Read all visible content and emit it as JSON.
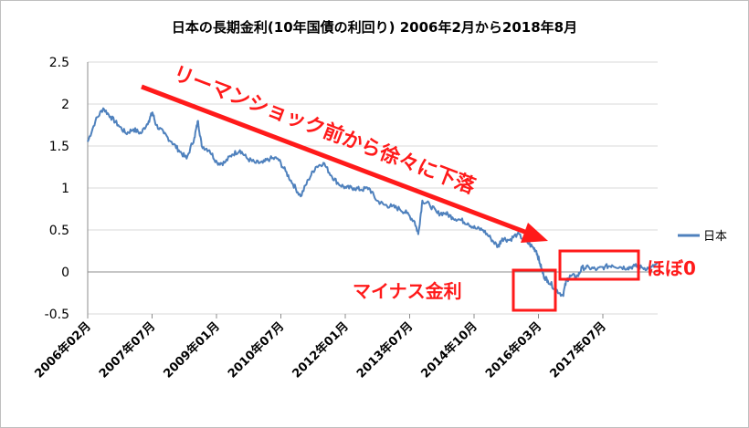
{
  "chart_data": {
    "type": "line",
    "title": "日本の長期金利(10年国債の利回り)  2006年2月から2018年8月",
    "xlabel": "",
    "ylabel": "",
    "ylim": [
      -0.5,
      2.5
    ],
    "yticks": [
      "2.5",
      "2",
      "1.5",
      "1",
      "0.5",
      "0",
      "-0.5"
    ],
    "xticks": [
      "2006年02月",
      "2007年07月",
      "2009年01月",
      "2010年07月",
      "2012年01月",
      "2013年07月",
      "2014年10月",
      "2016年03月",
      "2017年07月"
    ],
    "legend": {
      "position": "right",
      "label": "日本"
    },
    "series": [
      {
        "name": "日本",
        "color": "#4f81bd",
        "x": [
          2006.08,
          2006.25,
          2006.42,
          2006.58,
          2006.75,
          2006.92,
          2007.08,
          2007.25,
          2007.42,
          2007.5,
          2007.58,
          2007.75,
          2007.92,
          2008.08,
          2008.25,
          2008.42,
          2008.5,
          2008.58,
          2008.75,
          2008.92,
          2009.08,
          2009.25,
          2009.42,
          2009.58,
          2009.75,
          2009.92,
          2010.08,
          2010.25,
          2010.42,
          2010.58,
          2010.75,
          2010.92,
          2011.08,
          2011.25,
          2011.42,
          2011.58,
          2011.75,
          2011.92,
          2012.08,
          2012.25,
          2012.42,
          2012.58,
          2012.75,
          2012.92,
          2013.08,
          2013.25,
          2013.33,
          2013.42,
          2013.58,
          2013.75,
          2013.92,
          2014.08,
          2014.25,
          2014.42,
          2014.58,
          2014.75,
          2014.92,
          2015.08,
          2015.17,
          2015.33,
          2015.5,
          2015.67,
          2015.83,
          2015.92,
          2016.0,
          2016.08,
          2016.17,
          2016.33,
          2016.5,
          2016.58,
          2016.67,
          2016.83,
          2016.92,
          2017.08,
          2017.25,
          2017.42,
          2017.58,
          2017.75,
          2017.92,
          2018.08,
          2018.25,
          2018.42,
          2018.58
        ],
        "values": [
          1.55,
          1.8,
          1.95,
          1.85,
          1.75,
          1.65,
          1.7,
          1.65,
          1.8,
          1.9,
          1.75,
          1.65,
          1.55,
          1.45,
          1.35,
          1.6,
          1.8,
          1.5,
          1.45,
          1.3,
          1.3,
          1.4,
          1.45,
          1.35,
          1.3,
          1.3,
          1.35,
          1.35,
          1.2,
          1.05,
          0.9,
          1.1,
          1.25,
          1.3,
          1.15,
          1.05,
          1.0,
          1.0,
          0.98,
          1.0,
          0.85,
          0.8,
          0.78,
          0.75,
          0.7,
          0.6,
          0.45,
          0.85,
          0.8,
          0.7,
          0.7,
          0.65,
          0.62,
          0.58,
          0.52,
          0.5,
          0.4,
          0.3,
          0.4,
          0.38,
          0.45,
          0.38,
          0.3,
          0.25,
          0.1,
          -0.05,
          -0.1,
          -0.2,
          -0.28,
          -0.1,
          -0.05,
          -0.05,
          0.05,
          0.05,
          0.03,
          0.06,
          0.08,
          0.06,
          0.05,
          0.07,
          0.05,
          0.04,
          0.1
        ]
      }
    ],
    "annotations": {
      "arrow_text": "リーマンショック前から徐々に下落",
      "negative_label": "マイナス金利",
      "near_zero_label": "ほぼ0"
    }
  }
}
